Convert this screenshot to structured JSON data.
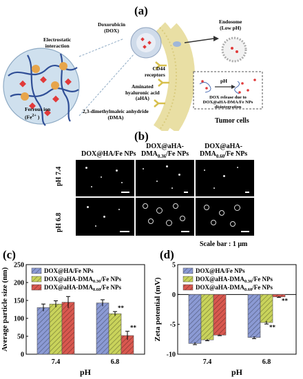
{
  "panel_a": {
    "label": "(a)",
    "callouts": {
      "dox": "Doxorubicin\n(DOX)",
      "electrostatic": "Electrostatic\ninteraction",
      "cd44": "CD44\nreceptors",
      "endosome": "Endosome\n(Low pH)",
      "aha": "Aminated\nhyaluronic acid\n(aHA)",
      "ferrous": "Ferrous ion\n(Fe",
      "ferrous_sup": "2+",
      "ferrous_end": " )",
      "dma": "2,3-dimethylmaleic anhydride\n(DMA)",
      "tumor": "Tumor cells",
      "ph_arrow": "pH",
      "release": "DOX release due to\nDOX@aHA-DMA/Fe NPs\ndisintegration"
    }
  },
  "panel_b": {
    "label": "(b)",
    "columns": [
      {
        "text": "DOX@HA/Fe NPs"
      },
      {
        "text": "DOX@aHA-\nDMA",
        "sub": "0.36",
        "end": "/Fe NPs"
      },
      {
        "text": "DOX@aHA-\nDMA",
        "sub": "0.60",
        "end": "/Fe NPs"
      }
    ],
    "rows": [
      "pH 7.4",
      "pH 6.8"
    ],
    "scale_bar": "Scale bar : 1 μm"
  },
  "panel_c": {
    "label": "(c)",
    "chart_data": {
      "type": "bar",
      "ylabel": "Average particle size (nm)",
      "xlabel": "pH",
      "categories": [
        "7.4",
        "6.8"
      ],
      "ylim": [
        0,
        250
      ],
      "yticks": [
        0,
        50,
        100,
        150,
        200,
        250
      ],
      "series": [
        {
          "name": "DOX@HA/Fe NPs",
          "name_main": "DOX@HA/Fe NPs",
          "name_sub": "",
          "name_end": "",
          "color": "#8b9ad4",
          "values": [
            130,
            143
          ],
          "errors": [
            10,
            9
          ]
        },
        {
          "name": "DOX@aHA-DMA0.36/Fe NPs",
          "name_main": "DOX@aHA-DMA",
          "name_sub": "0.36",
          "name_end": "/Fe NPs",
          "color": "#c9d35b",
          "values": [
            140,
            113
          ],
          "errors": [
            9,
            6
          ]
        },
        {
          "name": "DOX@aHA-DMA0.60/Fe NPs",
          "name_main": "DOX@aHA-DMA",
          "name_sub": "0.60",
          "name_end": "/Fe NPs",
          "color": "#d9584f",
          "values": [
            145,
            52
          ],
          "errors": [
            16,
            12
          ]
        }
      ],
      "annotations": [
        "**",
        "**"
      ]
    }
  },
  "panel_d": {
    "label": "(d)",
    "chart_data": {
      "type": "bar",
      "ylabel": "Zeta potential (mV)",
      "xlabel": "pH",
      "categories": [
        "7.4",
        "6.8"
      ],
      "ylim": [
        -10,
        5
      ],
      "yticks": [
        -10,
        -5,
        0,
        5
      ],
      "series": [
        {
          "name": "DOX@HA/Fe NPs",
          "name_main": "DOX@HA/Fe NPs",
          "name_sub": "",
          "name_end": "",
          "color": "#8b9ad4",
          "values": [
            -8.2,
            -7.2
          ],
          "errors": [
            0.2,
            0.2
          ]
        },
        {
          "name": "DOX@aHA-DMA0.36/Fe NPs",
          "name_main": "DOX@aHA-DMA",
          "name_sub": "0.36",
          "name_end": "/Fe NPs",
          "color": "#c9d35b",
          "values": [
            -7.6,
            -4.7
          ],
          "errors": [
            0.15,
            0.25
          ]
        },
        {
          "name": "DOX@aHA-DMA0.60/Fe NPs",
          "name_main": "DOX@aHA-DMA",
          "name_sub": "0.60",
          "name_end": "/Fe NPs",
          "color": "#d9584f",
          "values": [
            -6.8,
            -0.4
          ],
          "errors": [
            0.1,
            0.1
          ]
        }
      ],
      "annotations": [
        "**",
        "**"
      ]
    }
  }
}
